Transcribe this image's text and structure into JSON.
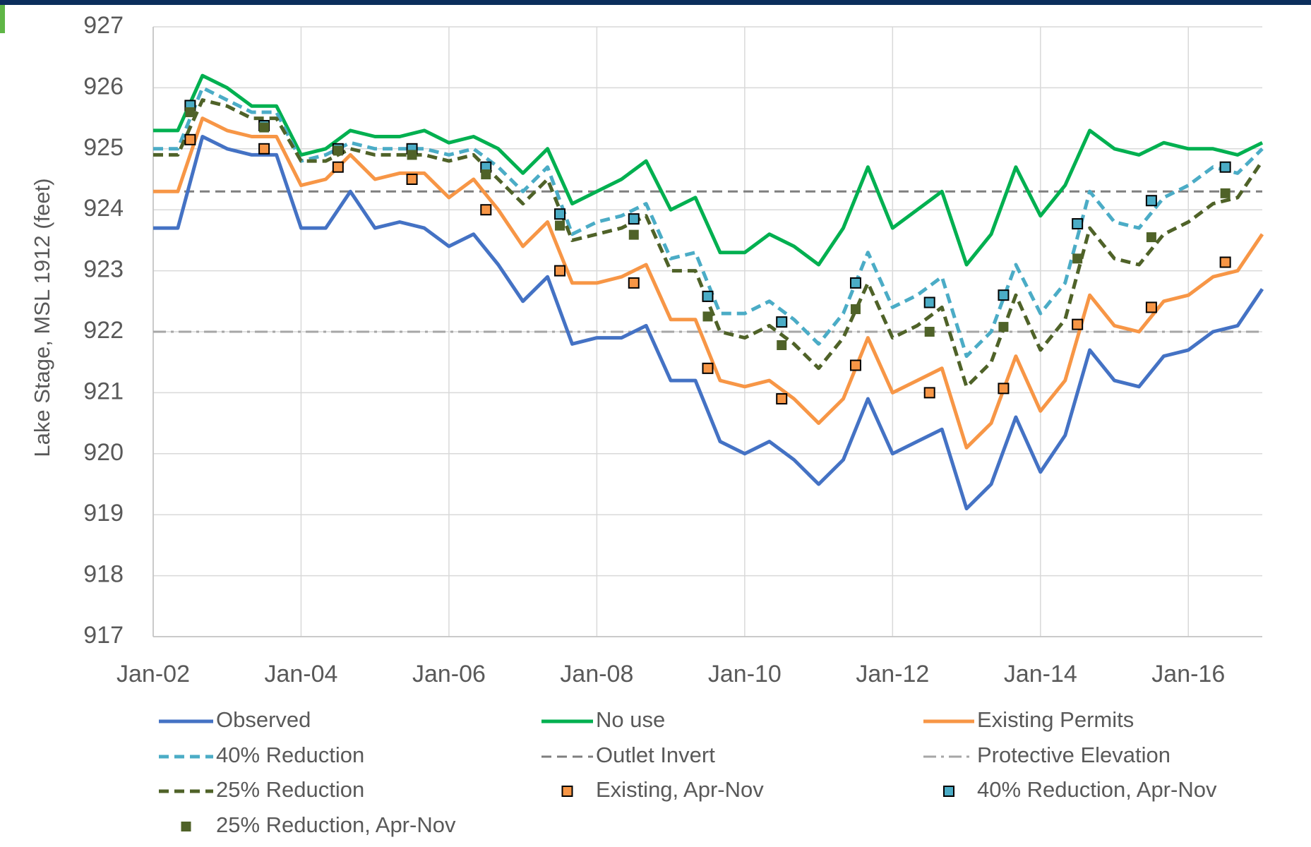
{
  "chart_data": {
    "type": "line",
    "y_axis_label": "Lake Stage, MSL 1912 (feet)",
    "x": [
      "2002-01",
      "2002-05",
      "2002-09",
      "2003-01",
      "2003-05",
      "2003-09",
      "2004-01",
      "2004-05",
      "2004-09",
      "2005-01",
      "2005-05",
      "2005-09",
      "2006-01",
      "2006-05",
      "2006-09",
      "2007-01",
      "2007-05",
      "2007-09",
      "2008-01",
      "2008-05",
      "2008-09",
      "2009-01",
      "2009-05",
      "2009-09",
      "2010-01",
      "2010-05",
      "2010-09",
      "2011-01",
      "2011-05",
      "2011-09",
      "2012-01",
      "2012-05",
      "2012-09",
      "2013-01",
      "2013-05",
      "2013-09",
      "2014-01",
      "2014-05",
      "2014-09",
      "2015-01",
      "2015-05",
      "2015-09",
      "2016-01",
      "2016-05",
      "2016-09",
      "2017-01"
    ],
    "series": [
      {
        "name": "Observed",
        "color": "#4472c4",
        "style": "solid",
        "values": [
          923.7,
          923.7,
          925.2,
          925.0,
          924.9,
          924.9,
          923.7,
          923.7,
          924.3,
          923.7,
          923.8,
          923.7,
          923.4,
          923.6,
          923.1,
          922.5,
          922.9,
          921.8,
          921.9,
          921.9,
          922.1,
          921.2,
          921.2,
          920.2,
          920.0,
          920.2,
          919.9,
          919.5,
          919.9,
          920.9,
          920.0,
          920.2,
          920.4,
          919.1,
          919.5,
          920.6,
          919.7,
          920.3,
          921.7,
          921.2,
          921.1,
          921.6,
          921.7,
          922.0,
          922.1,
          922.7
        ]
      },
      {
        "name": "No use",
        "color": "#00b050",
        "style": "solid",
        "values": [
          925.3,
          925.3,
          926.2,
          926.0,
          925.7,
          925.7,
          924.9,
          925.0,
          925.3,
          925.2,
          925.2,
          925.3,
          925.1,
          925.2,
          925.0,
          924.6,
          925.0,
          924.1,
          924.3,
          924.5,
          924.8,
          924.0,
          924.2,
          923.3,
          923.3,
          923.6,
          923.4,
          923.1,
          923.7,
          924.7,
          923.7,
          924.0,
          924.3,
          923.1,
          923.6,
          924.7,
          923.9,
          924.4,
          925.3,
          925.0,
          924.9,
          925.1,
          925.0,
          925.0,
          924.9,
          925.1
        ]
      },
      {
        "name": "Existing Permits",
        "color": "#f79646",
        "style": "solid",
        "values": [
          924.3,
          924.3,
          925.5,
          925.3,
          925.2,
          925.2,
          924.4,
          924.5,
          924.9,
          924.5,
          924.6,
          924.6,
          924.2,
          924.5,
          924.0,
          923.4,
          923.8,
          922.8,
          922.8,
          922.9,
          923.1,
          922.2,
          922.2,
          921.2,
          921.1,
          921.2,
          920.9,
          920.5,
          920.9,
          921.9,
          921.0,
          921.2,
          921.4,
          920.1,
          920.5,
          921.6,
          920.7,
          921.2,
          922.6,
          922.1,
          922.0,
          922.5,
          922.6,
          922.9,
          923.0,
          923.6
        ]
      },
      {
        "name": "40% Reduction",
        "color": "#4bacc6",
        "style": "dashed",
        "values": [
          925.0,
          925.0,
          926.0,
          925.8,
          925.6,
          925.6,
          924.8,
          924.9,
          925.1,
          925.0,
          925.0,
          925.0,
          924.9,
          925.0,
          924.7,
          924.3,
          924.7,
          923.6,
          923.8,
          923.9,
          924.1,
          923.2,
          923.3,
          922.3,
          922.3,
          922.5,
          922.2,
          921.8,
          922.3,
          923.3,
          922.4,
          922.6,
          922.9,
          921.6,
          922.0,
          923.1,
          922.3,
          922.8,
          924.3,
          923.8,
          923.7,
          924.2,
          924.4,
          924.7,
          924.6,
          925.0
        ]
      },
      {
        "name": "25% Reduction",
        "color": "#4f6228",
        "style": "dashed",
        "values": [
          924.9,
          924.9,
          925.8,
          925.7,
          925.5,
          925.5,
          924.8,
          924.8,
          925.0,
          924.9,
          924.9,
          924.9,
          924.8,
          924.9,
          924.5,
          924.1,
          924.5,
          923.5,
          923.6,
          923.7,
          923.9,
          923.0,
          923.0,
          922.0,
          921.9,
          922.1,
          921.8,
          921.4,
          921.9,
          922.8,
          921.9,
          922.1,
          922.4,
          921.1,
          921.5,
          922.6,
          921.7,
          922.2,
          923.7,
          923.2,
          923.1,
          923.6,
          923.8,
          924.1,
          924.2,
          924.8
        ]
      }
    ],
    "reference_lines": [
      {
        "name": "Outlet Invert",
        "value": 924.3,
        "color": "#7f7f7f",
        "style": "dashed"
      },
      {
        "name": "Protective Elevation",
        "value": 922.0,
        "color": "#a6a6a6",
        "style": "dashdot"
      }
    ],
    "marker_x": [
      "2002-07",
      "2003-07",
      "2004-07",
      "2005-07",
      "2006-07",
      "2007-07",
      "2008-07",
      "2009-07",
      "2010-07",
      "2011-07",
      "2012-07",
      "2013-07",
      "2014-07",
      "2015-07",
      "2016-07"
    ],
    "marker_series": [
      {
        "name": "Existing, Apr-Nov",
        "color": "#f79646",
        "border": true,
        "values": [
          925.15,
          925.0,
          924.7,
          924.5,
          924.0,
          923.0,
          922.8,
          921.4,
          920.9,
          921.45,
          921.0,
          921.07,
          922.12,
          922.4,
          923.14
        ]
      },
      {
        "name": "40% Reduction, Apr-Nov",
        "color": "#4bacc6",
        "border": true,
        "values": [
          925.71,
          925.38,
          925.0,
          925.0,
          924.7,
          923.93,
          923.85,
          922.58,
          922.16,
          922.8,
          922.48,
          922.6,
          923.77,
          924.15,
          924.7
        ]
      },
      {
        "name": "25% Reduction, Apr-Nov",
        "color": "#4f6228",
        "border": false,
        "values": [
          925.6,
          925.35,
          924.97,
          924.9,
          924.58,
          923.74,
          923.59,
          922.25,
          921.78,
          922.37,
          922.0,
          922.08,
          923.2,
          923.55,
          924.27
        ]
      }
    ],
    "xlim": [
      "2002-01",
      "2017-01"
    ],
    "xticks": [
      {
        "value": "2002-01",
        "label": "Jan-02"
      },
      {
        "value": "2004-01",
        "label": "Jan-04"
      },
      {
        "value": "2006-01",
        "label": "Jan-06"
      },
      {
        "value": "2008-01",
        "label": "Jan-08"
      },
      {
        "value": "2010-01",
        "label": "Jan-10"
      },
      {
        "value": "2012-01",
        "label": "Jan-12"
      },
      {
        "value": "2014-01",
        "label": "Jan-14"
      },
      {
        "value": "2016-01",
        "label": "Jan-16"
      }
    ],
    "ylim": [
      917,
      927
    ],
    "yticks": [
      917,
      918,
      919,
      920,
      921,
      922,
      923,
      924,
      925,
      926,
      927
    ],
    "grid": true
  }
}
